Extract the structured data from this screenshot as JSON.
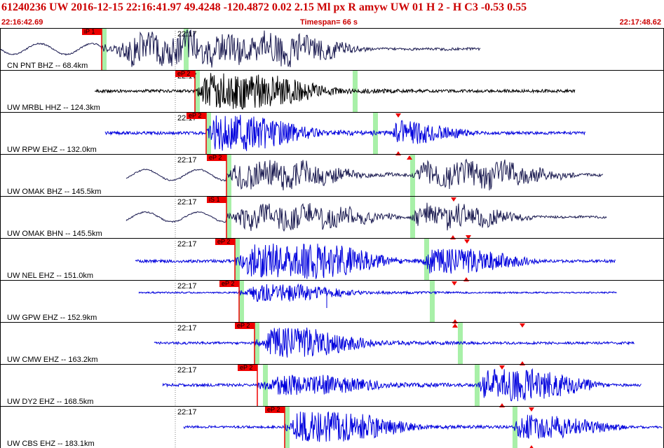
{
  "header": {
    "title": "61240236 UW 2016-12-15 22:16:41.97   49.4248 -120.4872   0.02  2.15 Ml  px  R amyw     UW 01  H   2  -  H C3   -0.53  0.55",
    "start_time": "22:16:42.69",
    "timespan": "Timespan=  66 s",
    "end_time": "22:17:48.62"
  },
  "colors": {
    "accent": "#cc0000",
    "pick": "#ee0000",
    "window": "#a8f0a8",
    "trace_blue": "#0000dd",
    "trace_navy": "#1a1a50",
    "trace_black": "#000000"
  },
  "minute_label": "22:17",
  "traces": [
    {
      "label": "CN PNT BHZ -- 68.4km",
      "pick": "iP 1",
      "color": "navy"
    },
    {
      "label": "UW MRBL HHZ -- 124.3km",
      "pick": "eP 2",
      "color": "black"
    },
    {
      "label": "UW RPW EHZ -- 132.0km",
      "pick": "eP 2",
      "color": "blue"
    },
    {
      "label": "UW OMAK BHZ -- 145.5km",
      "pick": "eP 2",
      "color": "navy"
    },
    {
      "label": "UW OMAK BHN -- 145.5km",
      "pick": "iS 1",
      "color": "navy"
    },
    {
      "label": "UW NEL EHZ -- 151.0km",
      "pick": "eP 2",
      "color": "blue"
    },
    {
      "label": "UW GPW EHZ -- 152.9km",
      "pick": "eP 2",
      "color": "blue"
    },
    {
      "label": "UW CMW EHZ -- 163.2km",
      "pick": "eP 2",
      "color": "blue"
    },
    {
      "label": "UW DY2 EHZ -- 168.5km",
      "pick": "eP 2",
      "color": "blue"
    },
    {
      "label": "UW CBS EHZ -- 183.1km",
      "pick": "eP 2",
      "color": "blue"
    }
  ]
}
